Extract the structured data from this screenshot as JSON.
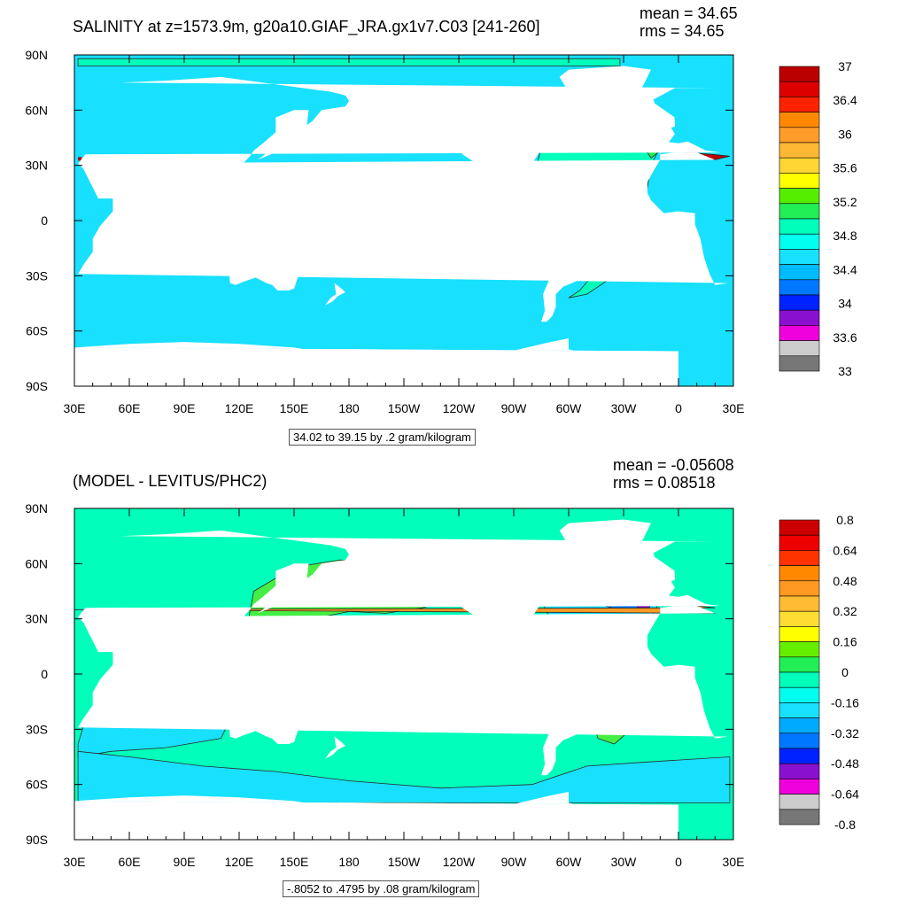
{
  "colors": {
    "land": "#ffffff",
    "frame": "#000000",
    "contour": "#2a2a2a"
  },
  "axes": {
    "lon_labels": [
      "30E",
      "60E",
      "90E",
      "120E",
      "150E",
      "180",
      "150W",
      "120W",
      "90W",
      "60W",
      "30W",
      "0",
      "30E"
    ],
    "lat_labels": [
      "90N",
      "60N",
      "30N",
      "0",
      "30S",
      "60S",
      "90S"
    ]
  },
  "panels": [
    {
      "title": "SALINITY at z=1573.9m, g20a10.GIAF_JRA.gx1v7.C03 [241-260]",
      "mean_text": "mean = 34.65",
      "rms_text": "rms = 34.65",
      "info_text": "34.02 to 39.15 by .2 gram/kilogram",
      "ocean_color": "#18e0ff",
      "colorbar": {
        "colors": [
          "#bb0000",
          "#dd0000",
          "#ff2200",
          "#ff8800",
          "#ff9c2a",
          "#ffb833",
          "#ffd633",
          "#ffff00",
          "#55ee00",
          "#22ee55",
          "#00ffbb",
          "#00ffee",
          "#18e0ff",
          "#00bbff",
          "#0077ff",
          "#0022ff",
          "#8a10d0",
          "#ee00dd",
          "#cccccc",
          "#777777"
        ],
        "labels": [
          "37",
          "36.4",
          "36",
          "35.6",
          "35.2",
          "34.8",
          "34.4",
          "34",
          "33.6",
          "33"
        ]
      },
      "features": [
        {
          "name": "atlantic-band",
          "color": "#00ffbb"
        },
        {
          "name": "arctic-band",
          "color": "#00ffbb"
        },
        {
          "name": "labrador-patch",
          "color": "#22ee55"
        },
        {
          "name": "iberia-patch",
          "color": "#22ee55"
        },
        {
          "name": "mediterranean-outflow",
          "color": "#bb0000"
        },
        {
          "name": "red-sea-patch",
          "color": "#bb0000"
        },
        {
          "name": "okhotsk-patch",
          "color": "#0077ff"
        }
      ]
    },
    {
      "title": "(MODEL - LEVITUS/PHC2)",
      "mean_text": "mean = -0.05608",
      "rms_text": "rms = 0.08518",
      "info_text": "-.8052 to .4795 by .08 gram/kilogram",
      "ocean_color": "#00ffbb",
      "colorbar": {
        "colors": [
          "#cc0000",
          "#ee0000",
          "#ff3300",
          "#ff8800",
          "#ff9922",
          "#ffbb33",
          "#ffdd33",
          "#ffff00",
          "#66ee00",
          "#22ee55",
          "#00ffbb",
          "#00ffee",
          "#18e0ff",
          "#00aaff",
          "#0077ff",
          "#0022ff",
          "#8a10d0",
          "#ee00dd",
          "#cccccc",
          "#777777"
        ],
        "labels": [
          "0.8",
          "0.64",
          "0.48",
          "0.32",
          "0.16",
          "0",
          "-0.16",
          "-0.32",
          "-0.48",
          "-0.64",
          "-0.8"
        ]
      },
      "features": [
        {
          "name": "north-pacific-positive",
          "color": "#44ee44"
        },
        {
          "name": "indian-ocean-negative",
          "color": "#18e0ff"
        },
        {
          "name": "southern-ocean-negative",
          "color": "#18e0ff"
        },
        {
          "name": "north-atlantic-negative",
          "color": "#18e0ff"
        },
        {
          "name": "gulf-stream-minimum",
          "color": "#0077ff"
        },
        {
          "name": "gulf-stream-core",
          "color": "#8a10d0"
        },
        {
          "name": "labrador-positive",
          "color": "#44ee44"
        },
        {
          "name": "south-atlantic-positive",
          "color": "#44ee44"
        },
        {
          "name": "mediterranean-positive",
          "color": "#ff9922"
        },
        {
          "name": "east-atlantic-positive",
          "color": "#66ee00"
        }
      ]
    }
  ]
}
